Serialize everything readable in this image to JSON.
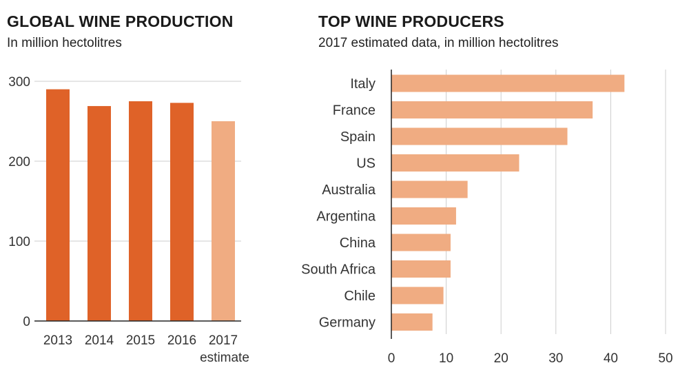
{
  "chart_data": [
    {
      "type": "bar",
      "title": "GLOBAL WINE PRODUCTION",
      "subtitle": "In million hectolitres",
      "categories": [
        "2013",
        "2014",
        "2015",
        "2016",
        "2017"
      ],
      "category_sublabels": [
        "",
        "",
        "",
        "",
        "estimate"
      ],
      "values": [
        290,
        269,
        275,
        273,
        250
      ],
      "estimated": [
        false,
        false,
        false,
        false,
        true
      ],
      "ylim": [
        0,
        300
      ],
      "yticks": [
        0,
        100,
        200,
        300
      ],
      "grid": true,
      "colors": {
        "actual": "#df6228",
        "estimate": "#f0ac82",
        "grid": "#cccccc",
        "axis": "#222222"
      }
    },
    {
      "type": "bar",
      "orientation": "horizontal",
      "title": "TOP WINE PRODUCERS",
      "subtitle": "2017 estimated data, in million hectolitres",
      "categories": [
        "Italy",
        "France",
        "Spain",
        "US",
        "Australia",
        "Argentina",
        "China",
        "South Africa",
        "Chile",
        "Germany"
      ],
      "values": [
        42.5,
        36.7,
        32.1,
        23.3,
        13.9,
        11.8,
        10.8,
        10.8,
        9.5,
        7.5
      ],
      "xlim": [
        0,
        50
      ],
      "xticks": [
        0,
        10,
        20,
        30,
        40,
        50
      ],
      "grid": true,
      "colors": {
        "bar": "#f0ac82",
        "grid": "#cccccc",
        "axis": "#222222"
      }
    }
  ]
}
